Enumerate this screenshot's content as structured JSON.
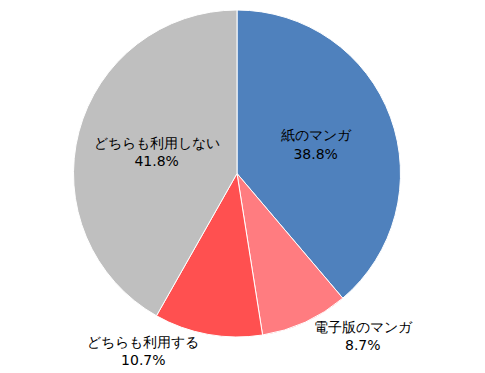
{
  "chart_data": {
    "type": "pie",
    "categories": [
      "紙のマンガ",
      "電子版のマンガ",
      "どちらも利用する",
      "どちらも利用しない"
    ],
    "values": [
      38.8,
      8.7,
      10.7,
      41.8
    ],
    "value_labels": [
      "38.8%",
      "8.7%",
      "10.7%",
      "41.8%"
    ],
    "colors": [
      "#4f81bd",
      "#ff7c80",
      "#ff5050",
      "#bfbfbf"
    ],
    "data_labels": true
  }
}
